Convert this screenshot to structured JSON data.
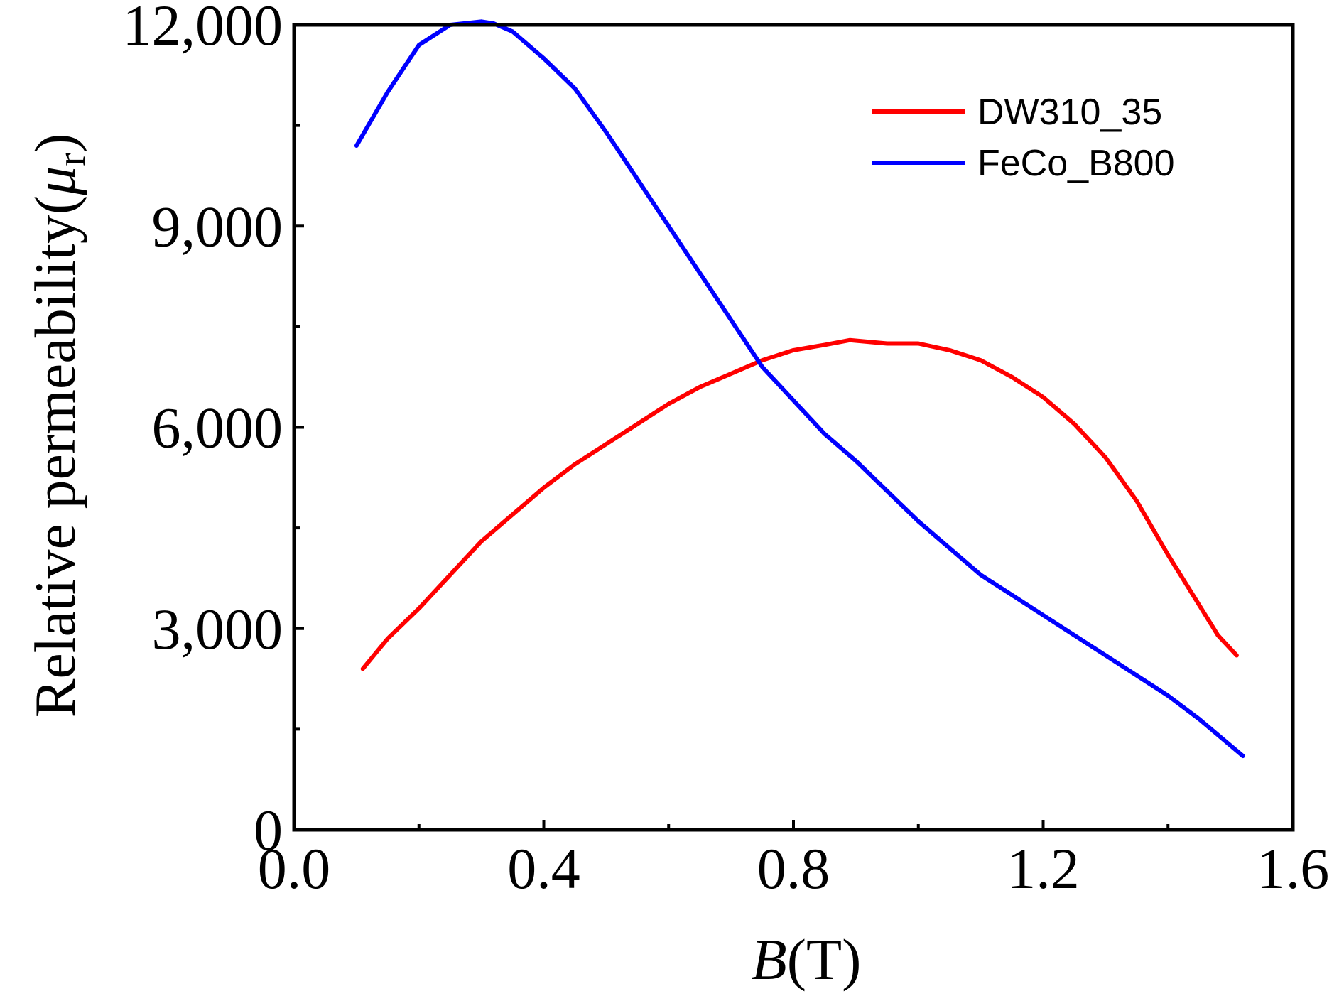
{
  "chart_data": {
    "type": "line",
    "title": "",
    "xlabel": {
      "var": "B",
      "unit": "(T)"
    },
    "ylabel": {
      "text": "Relative permeability(",
      "var": "μ",
      "sub": "r",
      "close": ")"
    },
    "xlim": [
      0.0,
      1.6
    ],
    "ylim": [
      0,
      12000
    ],
    "xticks": [
      0.0,
      0.4,
      0.8,
      1.2,
      1.6
    ],
    "xtick_labels": [
      "0.0",
      "0.4",
      "0.8",
      "1.2",
      "1.6"
    ],
    "xminor": [
      0.2,
      0.6,
      1.0,
      1.4
    ],
    "yticks": [
      0,
      3000,
      6000,
      9000,
      12000
    ],
    "ytick_labels": [
      "0",
      "3,000",
      "6,000",
      "9,000",
      "12,000"
    ],
    "yminor": [
      1500,
      4500,
      7500,
      10500
    ],
    "grid": false,
    "legend_position": "top-right",
    "series": [
      {
        "name": "DW310_35",
        "color": "#ff0000",
        "x": [
          0.11,
          0.15,
          0.2,
          0.25,
          0.3,
          0.35,
          0.4,
          0.45,
          0.5,
          0.55,
          0.6,
          0.65,
          0.7,
          0.75,
          0.8,
          0.85,
          0.89,
          0.95,
          1.0,
          1.05,
          1.1,
          1.15,
          1.2,
          1.25,
          1.3,
          1.35,
          1.4,
          1.45,
          1.48,
          1.51
        ],
        "y": [
          2400,
          2850,
          3300,
          3800,
          4300,
          4700,
          5100,
          5450,
          5750,
          6050,
          6350,
          6600,
          6800,
          7000,
          7150,
          7230,
          7300,
          7250,
          7250,
          7150,
          7000,
          6750,
          6450,
          6050,
          5550,
          4900,
          4100,
          3350,
          2900,
          2600
        ]
      },
      {
        "name": "FeCo_B800",
        "color": "#0000ff",
        "x": [
          0.1,
          0.15,
          0.2,
          0.25,
          0.3,
          0.32,
          0.35,
          0.4,
          0.45,
          0.5,
          0.55,
          0.6,
          0.65,
          0.7,
          0.75,
          0.8,
          0.85,
          0.9,
          0.95,
          1.0,
          1.05,
          1.1,
          1.15,
          1.2,
          1.25,
          1.3,
          1.35,
          1.4,
          1.45,
          1.52
        ],
        "y": [
          10200,
          11000,
          11700,
          12000,
          12050,
          12020,
          11900,
          11500,
          11050,
          10400,
          9700,
          9000,
          8300,
          7600,
          6900,
          6400,
          5900,
          5500,
          5050,
          4600,
          4200,
          3800,
          3500,
          3200,
          2900,
          2600,
          2300,
          2000,
          1650,
          1100
        ]
      }
    ]
  }
}
